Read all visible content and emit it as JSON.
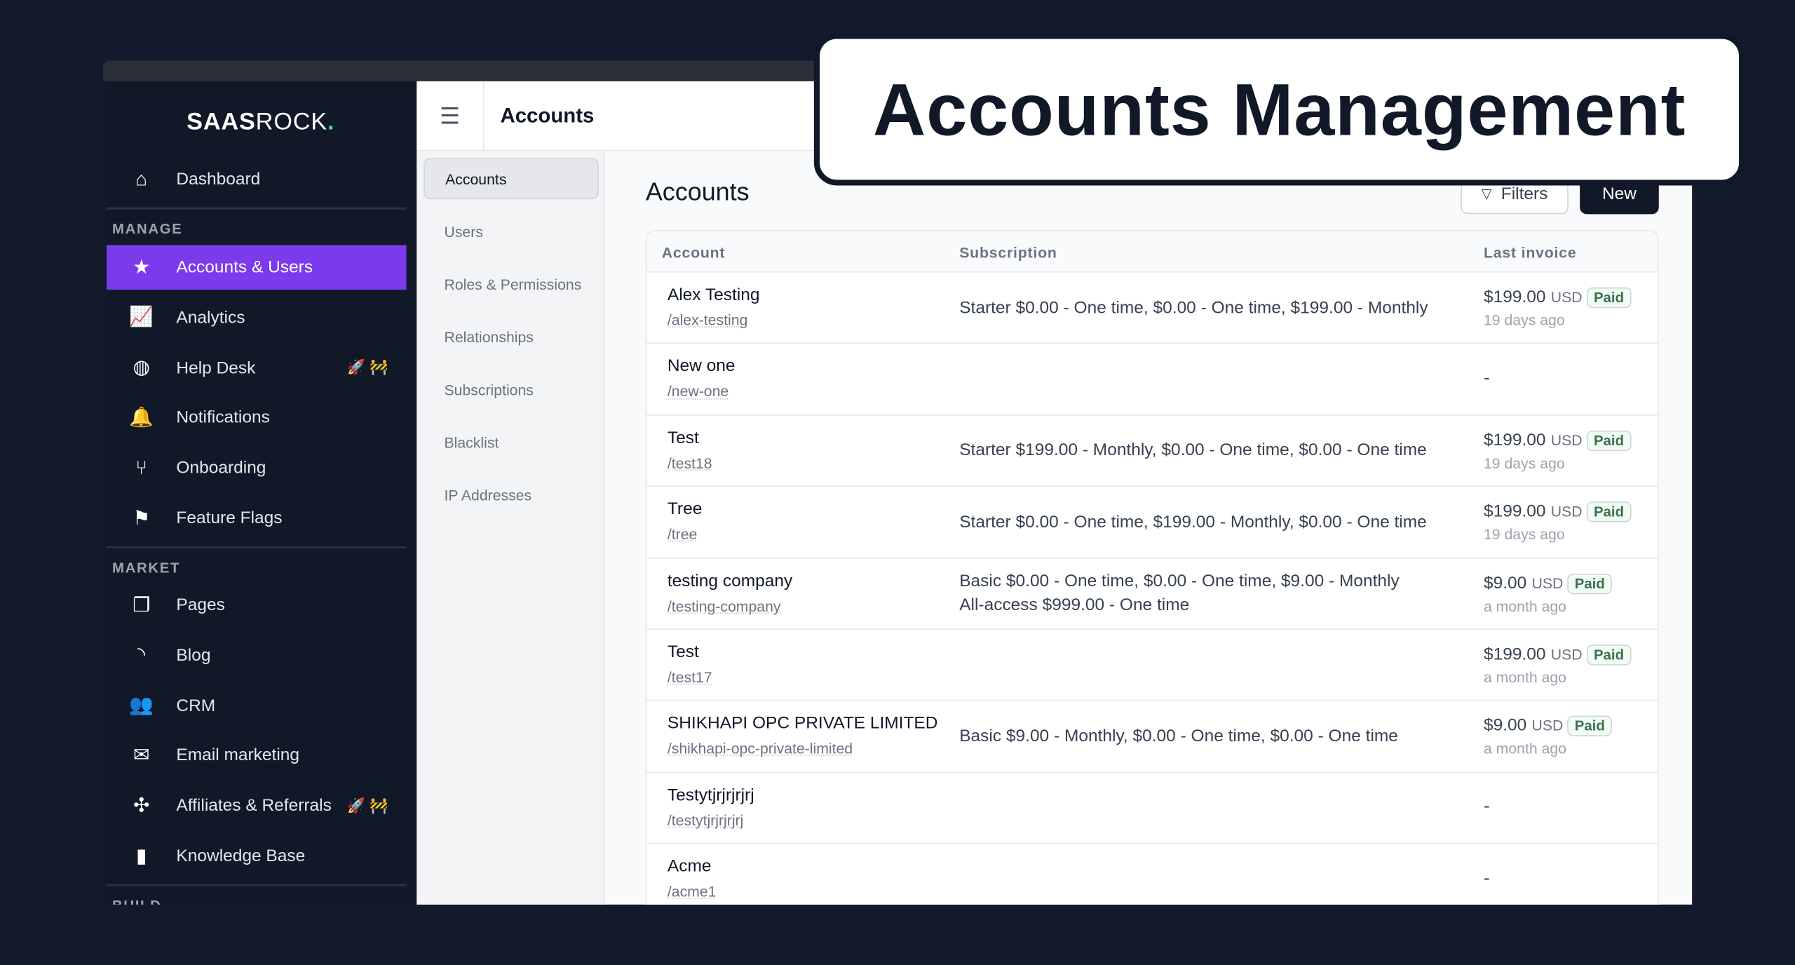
{
  "overlay_title": "Accounts Management",
  "brand": {
    "bold": "SAAS",
    "light": "ROCK",
    "dot": "."
  },
  "sidebar": {
    "dashboard": "Dashboard",
    "sections": [
      "MANAGE",
      "MARKET",
      "BUILD"
    ],
    "manage": [
      {
        "label": "Accounts & Users",
        "icon": "accounts-icon",
        "active": true
      },
      {
        "label": "Analytics",
        "icon": "analytics-icon"
      },
      {
        "label": "Help Desk",
        "icon": "help-desk-icon",
        "badge": "🚀 🚧"
      },
      {
        "label": "Notifications",
        "icon": "bell-icon"
      },
      {
        "label": "Onboarding",
        "icon": "onboarding-icon"
      },
      {
        "label": "Feature Flags",
        "icon": "flag-icon"
      }
    ],
    "market": [
      {
        "label": "Pages",
        "icon": "pages-icon"
      },
      {
        "label": "Blog",
        "icon": "rss-icon"
      },
      {
        "label": "CRM",
        "icon": "users-icon"
      },
      {
        "label": "Email marketing",
        "icon": "mail-icon"
      },
      {
        "label": "Affiliates & Referrals",
        "icon": "affiliates-icon",
        "badge": "🚀 🚧"
      },
      {
        "label": "Knowledge Base",
        "icon": "book-icon"
      }
    ]
  },
  "header": {
    "title": "Accounts"
  },
  "submenu": [
    "Accounts",
    "Users",
    "Roles & Permissions",
    "Relationships",
    "Subscriptions",
    "Blacklist",
    "IP Addresses"
  ],
  "page": {
    "title": "Accounts",
    "filters": "Filters",
    "new": "New"
  },
  "table": {
    "columns": [
      "Account",
      "Subscription",
      "Last invoice"
    ],
    "rows": [
      {
        "name": "Alex Testing",
        "slug": "/alex-testing",
        "subscription": "Starter $0.00 - One time, $0.00 - One time, $199.00 - Monthly",
        "amount": "$199.00",
        "currency": "USD",
        "status": "Paid",
        "ago": "19 days ago"
      },
      {
        "name": "New one",
        "slug": "/new-one",
        "subscription": "",
        "empty": "-"
      },
      {
        "name": "Test",
        "slug": "/test18",
        "subscription": "Starter $199.00 - Monthly, $0.00 - One time, $0.00 - One time",
        "amount": "$199.00",
        "currency": "USD",
        "status": "Paid",
        "ago": "19 days ago"
      },
      {
        "name": "Tree",
        "slug": "/tree",
        "subscription": "Starter $0.00 - One time, $199.00 - Monthly, $0.00 - One time",
        "amount": "$199.00",
        "currency": "USD",
        "status": "Paid",
        "ago": "19 days ago"
      },
      {
        "name": "testing company",
        "slug": "/testing-company",
        "subscription": "Basic $0.00 - One time, $0.00 - One time, $9.00 - Monthly",
        "subscription2": "All-access $999.00 - One time",
        "amount": "$9.00",
        "currency": "USD",
        "status": "Paid",
        "ago": "a month ago"
      },
      {
        "name": "Test",
        "slug": "/test17",
        "subscription": "",
        "amount": "$199.00",
        "currency": "USD",
        "status": "Paid",
        "ago": "a month ago"
      },
      {
        "name": "SHIKHAPI OPC PRIVATE LIMITED",
        "slug": "/shikhapi-opc-private-limited",
        "subscription": "Basic $9.00 - Monthly, $0.00 - One time, $0.00 - One time",
        "amount": "$9.00",
        "currency": "USD",
        "status": "Paid",
        "ago": "a month ago"
      },
      {
        "name": "Testytjrjrjrjrj",
        "slug": "/testytjrjrjrjrj",
        "subscription": "",
        "empty": "-"
      },
      {
        "name": "Acme",
        "slug": "/acme1",
        "subscription": "",
        "empty": "-"
      }
    ]
  },
  "colors": {
    "accent": "#7c3aed",
    "sidebar": "#111827",
    "paid": "#3f6e4e"
  }
}
